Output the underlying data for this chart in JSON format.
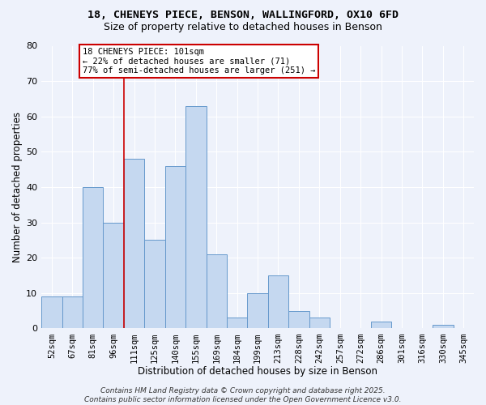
{
  "title_line1": "18, CHENEYS PIECE, BENSON, WALLINGFORD, OX10 6FD",
  "title_line2": "Size of property relative to detached houses in Benson",
  "xlabel": "Distribution of detached houses by size in Benson",
  "ylabel": "Number of detached properties",
  "categories": [
    "52sqm",
    "67sqm",
    "81sqm",
    "96sqm",
    "111sqm",
    "125sqm",
    "140sqm",
    "155sqm",
    "169sqm",
    "184sqm",
    "199sqm",
    "213sqm",
    "228sqm",
    "242sqm",
    "257sqm",
    "272sqm",
    "286sqm",
    "301sqm",
    "316sqm",
    "330sqm",
    "345sqm"
  ],
  "values": [
    9,
    9,
    40,
    30,
    48,
    25,
    46,
    63,
    21,
    3,
    10,
    15,
    5,
    3,
    0,
    0,
    2,
    0,
    0,
    1,
    0
  ],
  "bar_color": "#c5d8f0",
  "bar_edge_color": "#6699cc",
  "annotation_text": "18 CHENEYS PIECE: 101sqm\n← 22% of detached houses are smaller (71)\n77% of semi-detached houses are larger (251) →",
  "red_line_x": 3.5,
  "ylim": [
    0,
    80
  ],
  "yticks": [
    0,
    10,
    20,
    30,
    40,
    50,
    60,
    70,
    80
  ],
  "annotation_box_color": "#ffffff",
  "annotation_border_color": "#cc0000",
  "footer_text": "Contains HM Land Registry data © Crown copyright and database right 2025.\nContains public sector information licensed under the Open Government Licence v3.0.",
  "background_color": "#eef2fb",
  "grid_color": "#ffffff",
  "title_fontsize": 9.5,
  "subtitle_fontsize": 9.0,
  "tick_fontsize": 7.5,
  "axis_label_fontsize": 8.5,
  "annotation_fontsize": 7.5,
  "footer_fontsize": 6.5
}
